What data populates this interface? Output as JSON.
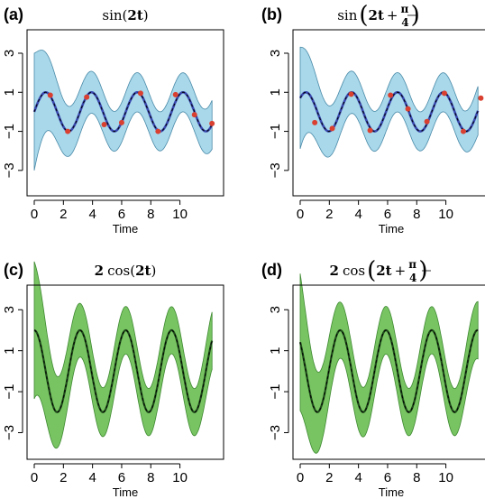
{
  "chart_data": [
    {
      "type": "line",
      "panel": "(a)",
      "title_parts": [
        "sin(",
        "2t",
        ")"
      ],
      "xlabel": "Time",
      "x_ticks": [
        0,
        2,
        4,
        6,
        8,
        10
      ],
      "y_ticks": [
        3,
        1,
        -1,
        -3
      ],
      "y_tick_labels": [
        "3",
        "1",
        "−1",
        "−3"
      ],
      "xlim": [
        0,
        12.5
      ],
      "ylim": [
        -4.3,
        4.2
      ],
      "colors": {
        "band": "#a8d8ea",
        "band_edge": "#4a8aa8",
        "mean": "#3a49b0",
        "points": "#d94030",
        "truth": "#000000"
      },
      "truth": {
        "amplitude": 1,
        "phase": 0
      },
      "mean": {
        "amplitude": 1,
        "phase": 0
      },
      "band_half_width": 1.0,
      "start_spread": 2.0,
      "observations": {
        "x": [
          1.1,
          2.3,
          3.6,
          4.8,
          6.0,
          7.3,
          8.5,
          9.7,
          11.0,
          12.2
        ],
        "y": [
          0.85,
          -1.0,
          0.75,
          -0.65,
          -0.55,
          0.95,
          -1.0,
          0.88,
          -0.15,
          -0.6
        ]
      }
    },
    {
      "type": "line",
      "panel": "(b)",
      "title_parts": [
        "sin",
        "2t",
        "π",
        "4"
      ],
      "xlabel": "Time",
      "x_ticks": [
        0,
        2,
        4,
        6,
        8,
        10
      ],
      "y_ticks": [
        3,
        1,
        -1,
        -3
      ],
      "y_tick_labels": [
        "3",
        "1",
        "−1",
        "−3"
      ],
      "xlim": [
        0,
        12.5
      ],
      "ylim": [
        -4.3,
        4.2
      ],
      "colors": {
        "band": "#a8d8ea",
        "band_edge": "#4a8aa8",
        "mean": "#3a49b0",
        "points": "#d94030",
        "truth": "#000000"
      },
      "truth": {
        "amplitude": 1,
        "phase": 0.785
      },
      "mean": {
        "amplitude": 1,
        "phase": 0.785
      },
      "band_half_width": 1.0,
      "start_spread": 1.6,
      "observations": {
        "x": [
          1.0,
          2.2,
          3.5,
          4.8,
          6.2,
          7.4,
          8.7,
          9.9,
          11.2,
          12.4
        ],
        "y": [
          -0.55,
          -0.85,
          0.9,
          -0.95,
          0.85,
          0.15,
          -0.5,
          0.95,
          -1.0,
          0.7
        ]
      }
    },
    {
      "type": "line",
      "panel": "(c)",
      "title_parts": [
        "2",
        "cos(",
        "2t",
        ")"
      ],
      "xlabel": "Time",
      "x_ticks": [
        0,
        2,
        4,
        6,
        8,
        10
      ],
      "y_ticks": [
        3,
        1,
        -1,
        -3
      ],
      "y_tick_labels": [
        "3",
        "1",
        "−1",
        "−3"
      ],
      "xlim": [
        0,
        12.5
      ],
      "ylim": [
        -4.3,
        4.2
      ],
      "colors": {
        "band": "#78c462",
        "band_edge": "#3f8a32",
        "mean": "#1e4a1a",
        "truth": "#000000"
      },
      "truth": {
        "amplitude": 2,
        "phase": 1.571
      },
      "mean": {
        "amplitude": 2,
        "phase": 1.571
      },
      "band_half_width": 1.15,
      "start_spread": 2.2,
      "observations": {
        "x": [],
        "y": []
      }
    },
    {
      "type": "line",
      "panel": "(d)",
      "title_parts": [
        "2",
        "cos",
        "2t",
        "π",
        "4"
      ],
      "xlabel": "Time",
      "x_ticks": [
        0,
        2,
        4,
        6,
        8,
        10
      ],
      "y_ticks": [
        3,
        1,
        -1,
        -3
      ],
      "y_tick_labels": [
        "3",
        "1",
        "−1",
        "−3"
      ],
      "xlim": [
        0,
        12.5
      ],
      "ylim": [
        -4.3,
        4.2
      ],
      "colors": {
        "band": "#78c462",
        "band_edge": "#3f8a32",
        "mean": "#1e4a1a",
        "truth": "#000000"
      },
      "truth": {
        "amplitude": 2,
        "phase": 2.356
      },
      "mean": {
        "amplitude": 2,
        "phase": 2.356
      },
      "band_half_width": 1.15,
      "start_spread": 2.2,
      "observations": {
        "x": [],
        "y": []
      }
    }
  ]
}
